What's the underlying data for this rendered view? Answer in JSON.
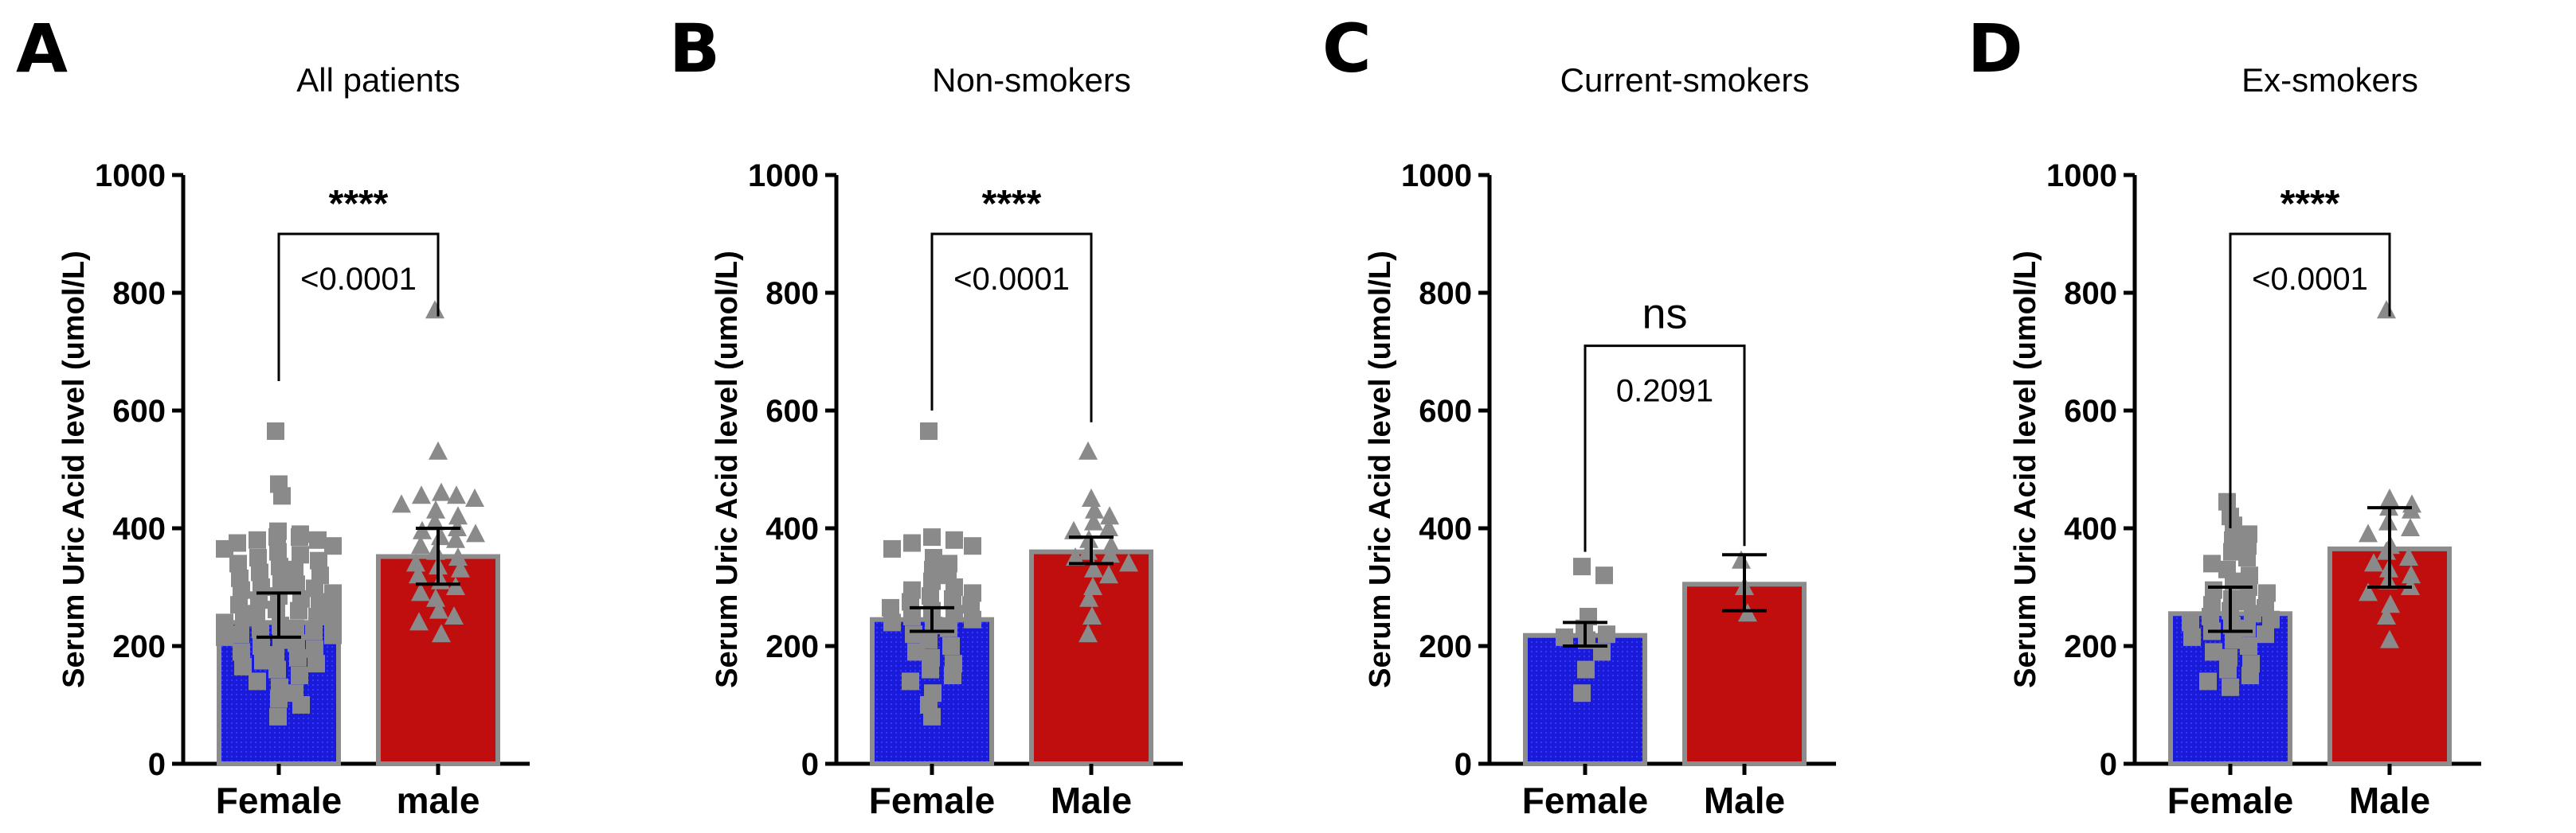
{
  "chart_data": [
    {
      "type": "bar",
      "panel_letter": "A",
      "title": "All patients",
      "ylabel": "Serum Uric Acid level (umol/L)",
      "xlabel": "",
      "ylim": [
        0,
        1000
      ],
      "yticks": [
        "0",
        "200",
        "400",
        "600",
        "800",
        "1000"
      ],
      "categories": [
        "Female",
        "male"
      ],
      "values": [
        240,
        352
      ],
      "error": [
        [
          215,
          290
        ],
        [
          305,
          400
        ]
      ],
      "markers": [
        "square",
        "triangle"
      ],
      "bar_colors": [
        "#1a1ad9",
        "#c00d0d"
      ],
      "points": [
        [
          565,
          475,
          455,
          395,
          390,
          385,
          385,
          380,
          380,
          375,
          370,
          365,
          360,
          355,
          350,
          345,
          340,
          335,
          330,
          325,
          320,
          315,
          310,
          305,
          300,
          298,
          295,
          290,
          285,
          280,
          278,
          275,
          270,
          265,
          262,
          260,
          255,
          250,
          248,
          245,
          240,
          238,
          235,
          230,
          228,
          225,
          220,
          218,
          215,
          210,
          205,
          200,
          195,
          190,
          185,
          180,
          175,
          170,
          165,
          160,
          150,
          140,
          130,
          120,
          110,
          100,
          80
        ],
        [
          770,
          530,
          460,
          455,
          455,
          450,
          440,
          430,
          420,
          410,
          400,
          395,
          390,
          385,
          380,
          370,
          360,
          350,
          340,
          335,
          330,
          320,
          310,
          300,
          290,
          280,
          260,
          250,
          240,
          220
        ]
      ],
      "significance": "****",
      "p_value": "<0.0001",
      "bracket_y": [
        650,
        900,
        900,
        760
      ]
    },
    {
      "type": "bar",
      "panel_letter": "B",
      "title": "Non-smokers",
      "ylabel": "Serum Uric Acid level (umol/L)",
      "xlabel": "",
      "ylim": [
        0,
        1000
      ],
      "yticks": [
        "0",
        "200",
        "400",
        "600",
        "800",
        "1000"
      ],
      "categories": [
        "Female",
        "Male"
      ],
      "values": [
        245,
        360
      ],
      "error": [
        [
          225,
          265
        ],
        [
          340,
          385
        ]
      ],
      "markers": [
        "square",
        "triangle"
      ],
      "bar_colors": [
        "#1a1ad9",
        "#c00d0d"
      ],
      "points": [
        [
          565,
          385,
          380,
          375,
          370,
          365,
          350,
          340,
          330,
          320,
          310,
          300,
          295,
          290,
          285,
          280,
          275,
          270,
          265,
          260,
          255,
          250,
          245,
          240,
          235,
          230,
          220,
          210,
          200,
          190,
          180,
          170,
          160,
          150,
          140,
          120,
          100,
          80
        ],
        [
          530,
          450,
          430,
          420,
          410,
          400,
          395,
          380,
          370,
          360,
          355,
          350,
          340,
          330,
          320,
          300,
          280,
          250,
          220
        ]
      ],
      "significance": "****",
      "p_value": "<0.0001",
      "bracket_y": [
        600,
        900,
        900,
        580
      ]
    },
    {
      "type": "bar",
      "panel_letter": "C",
      "title": "Current-smokers",
      "ylabel": "Serum Uric Acid level (umol/L)",
      "xlabel": "",
      "ylim": [
        0,
        1000
      ],
      "yticks": [
        "0",
        "200",
        "400",
        "600",
        "800",
        "1000"
      ],
      "categories": [
        "Female",
        "Male"
      ],
      "values": [
        218,
        305
      ],
      "error": [
        [
          200,
          240
        ],
        [
          260,
          355
        ]
      ],
      "markers": [
        "square",
        "triangle"
      ],
      "bar_colors": [
        "#1a1ad9",
        "#c00d0d"
      ],
      "points": [
        [
          335,
          320,
          250,
          230,
          220,
          215,
          210,
          190,
          160,
          120
        ],
        [
          345,
          300,
          255
        ]
      ],
      "significance": "ns",
      "p_value": "0.2091",
      "bracket_y": [
        360,
        710,
        710,
        370
      ]
    },
    {
      "type": "bar",
      "panel_letter": "D",
      "title": "Ex-smokers",
      "ylabel": "Serum Uric Acid level (umol/L)",
      "xlabel": "",
      "ylim": [
        0,
        1000
      ],
      "yticks": [
        "0",
        "200",
        "400",
        "600",
        "800",
        "1000"
      ],
      "categories": [
        "Female",
        "Male"
      ],
      "values": [
        255,
        365
      ],
      "error": [
        [
          225,
          300
        ],
        [
          300,
          435
        ]
      ],
      "markers": [
        "square",
        "triangle"
      ],
      "bar_colors": [
        "#1a1ad9",
        "#c00d0d"
      ],
      "points": [
        [
          445,
          420,
          405,
          390,
          380,
          370,
          360,
          350,
          340,
          330,
          320,
          310,
          300,
          295,
          290,
          280,
          275,
          270,
          265,
          260,
          255,
          250,
          245,
          240,
          235,
          230,
          225,
          220,
          215,
          210,
          200,
          190,
          180,
          170,
          160,
          150,
          140,
          130
        ],
        [
          770,
          450,
          440,
          435,
          430,
          410,
          400,
          390,
          370,
          360,
          350,
          340,
          330,
          320,
          310,
          300,
          290,
          270,
          250,
          210
        ]
      ],
      "significance": "****",
      "p_value": "<0.0001",
      "bracket_y": [
        400,
        900,
        900,
        760
      ]
    }
  ]
}
